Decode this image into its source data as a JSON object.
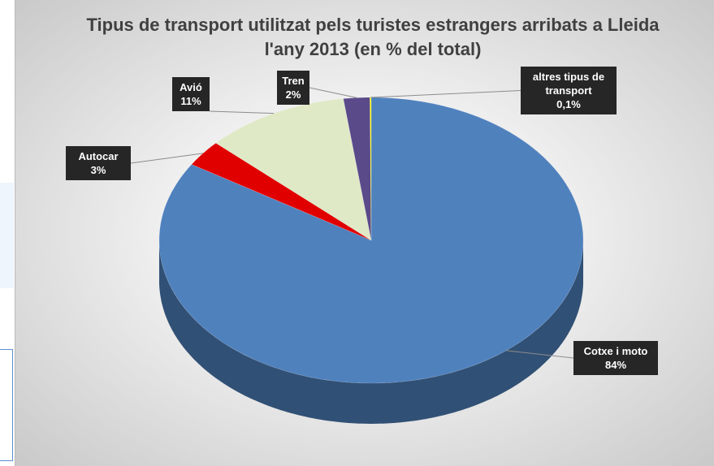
{
  "chart_data": {
    "type": "pie",
    "title": "Tipus de transport utilitzat pels turistes estrangers arribats a Lleida l'any 2013 (en % del total)",
    "categories": [
      "Cotxe i moto",
      "Autocar",
      "Avió",
      "Tren",
      "altres tipus de transport"
    ],
    "values": [
      84,
      3,
      11,
      2,
      0.1
    ],
    "value_labels": [
      "84%",
      "3%",
      "11%",
      "2%",
      "0,1%"
    ],
    "colors": [
      "#4f81bd",
      "#e00000",
      "#dfe9c6",
      "#5a4a8a",
      "#ffff00"
    ]
  }
}
